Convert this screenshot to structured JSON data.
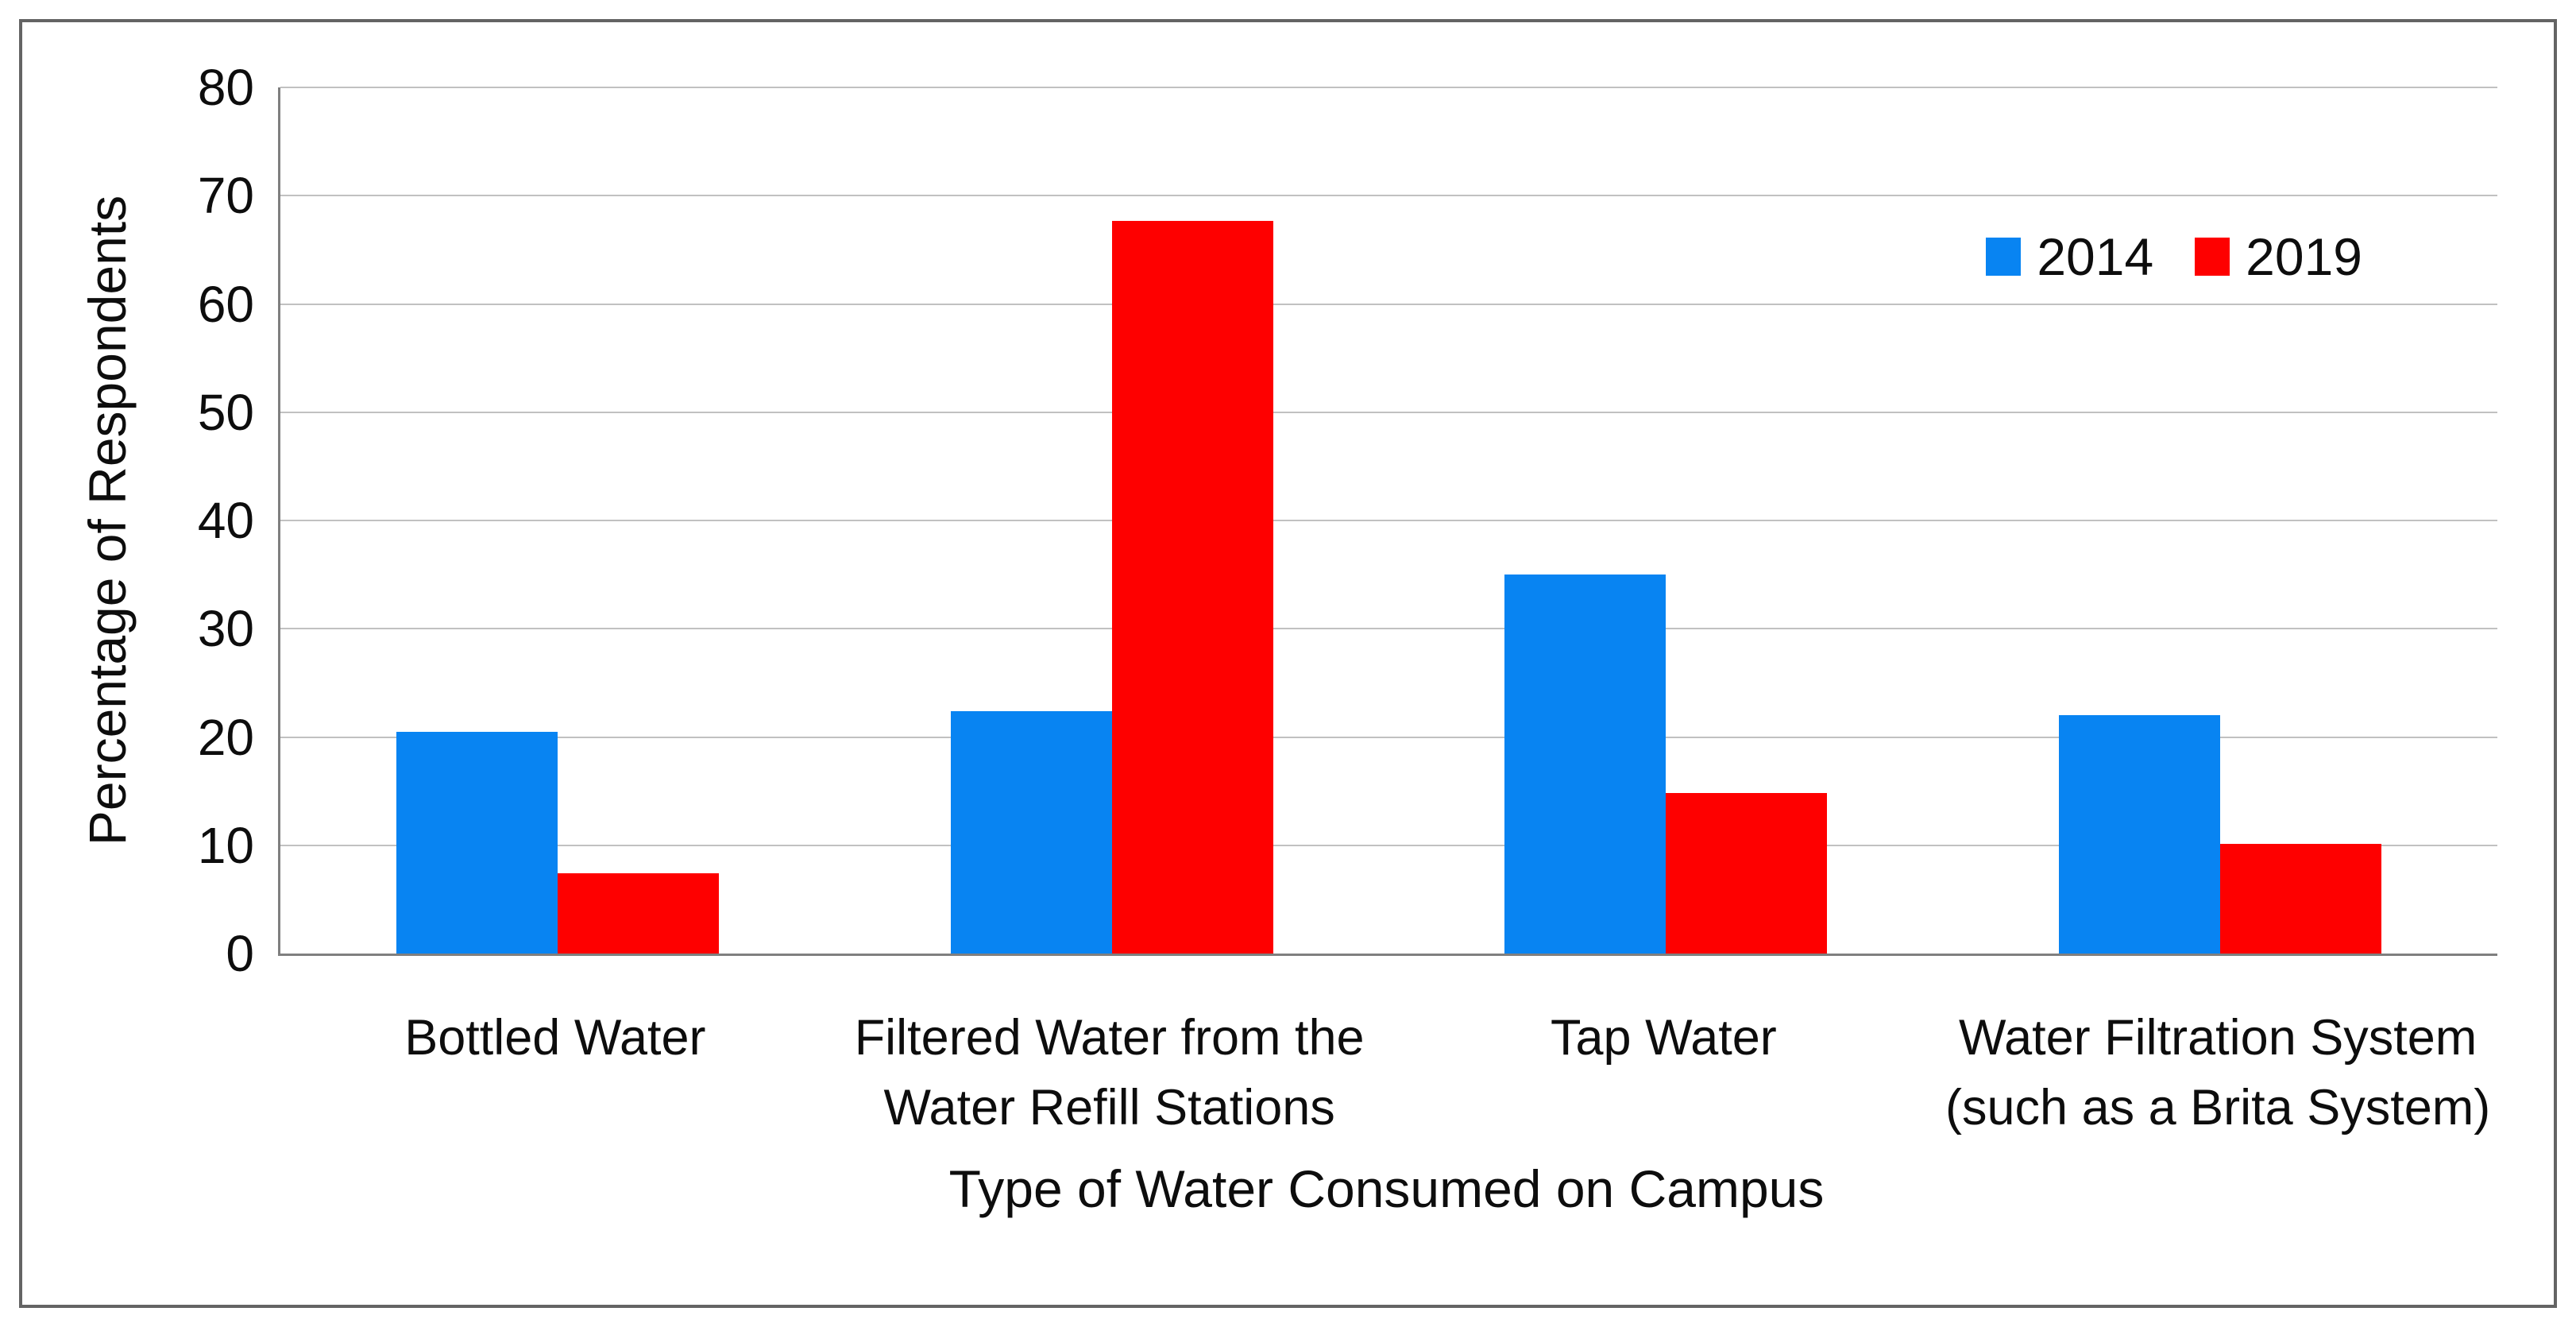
{
  "colors": {
    "series_2014": "#0884f2",
    "series_2019": "#fe0000",
    "gridline": "#c1c1c1",
    "axis_line": "#7f7f7f",
    "frame_border": "#646464",
    "text": "#0d0d0d",
    "background": "#ffffff"
  },
  "legend": {
    "position": "top-right",
    "items": [
      {
        "label": "2014",
        "color": "#0884f2"
      },
      {
        "label": "2019",
        "color": "#fe0000"
      }
    ]
  },
  "chart_data": {
    "type": "bar",
    "title": "",
    "categories": [
      "Bottled Water",
      "Filtered Water from the Water Refill Stations",
      "Tap Water",
      "Water Filtration System (such as a Brita System)"
    ],
    "category_label_lines": [
      [
        "Bottled Water"
      ],
      [
        "Filtered Water from the",
        "Water Refill Stations"
      ],
      [
        "Tap Water"
      ],
      [
        "Water Filtration System",
        "(such as a Brita System)"
      ]
    ],
    "series": [
      {
        "name": "2014",
        "color": "#0884f2",
        "values": [
          20.5,
          22.4,
          35,
          22
        ]
      },
      {
        "name": "2019",
        "color": "#fe0000",
        "values": [
          7.4,
          67.7,
          14.8,
          10.1
        ]
      }
    ],
    "xlabel": "Type of Water Consumed on Campus",
    "ylabel": "Percentage of Respondents",
    "ylim": [
      0,
      80
    ],
    "yticks": [
      0,
      10,
      20,
      30,
      40,
      50,
      60,
      70,
      80
    ],
    "grid": "horizontal",
    "legend_position": "top-right"
  }
}
